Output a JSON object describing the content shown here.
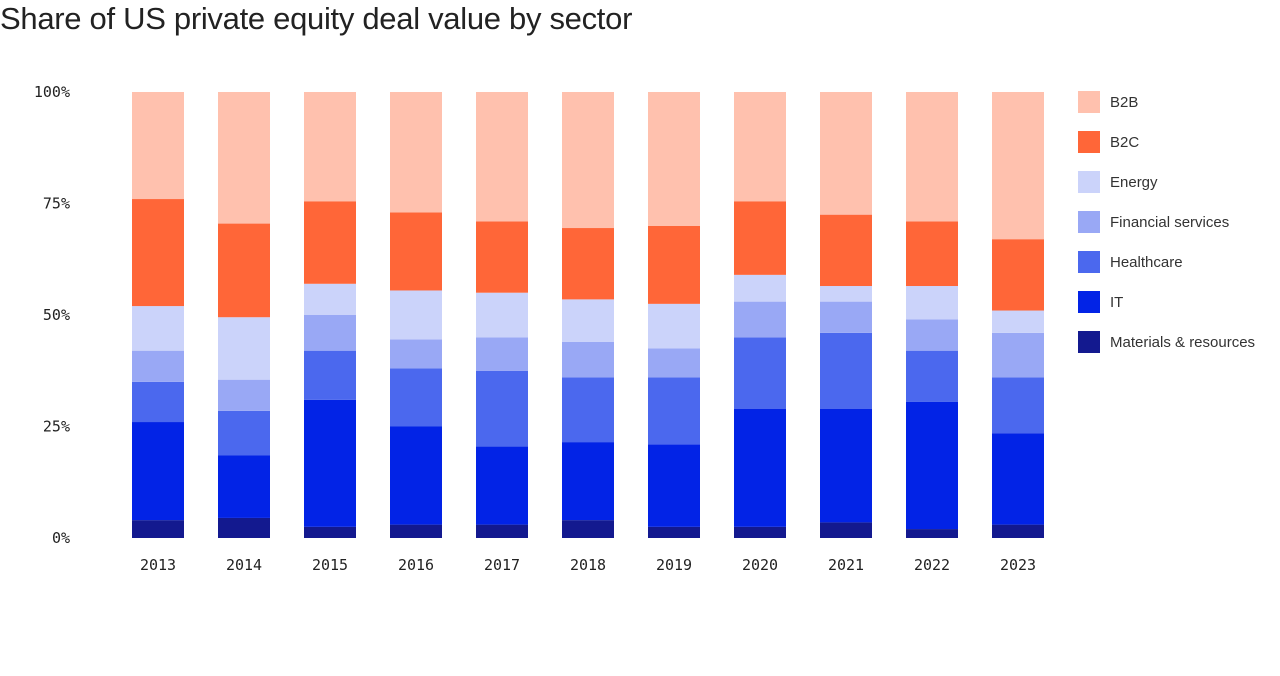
{
  "chart_data": {
    "type": "bar",
    "stacked": true,
    "title": "Share of US private equity deal value by sector",
    "categories": [
      "2013",
      "2014",
      "2015",
      "2016",
      "2017",
      "2018",
      "2019",
      "2020",
      "2021",
      "2022",
      "2023"
    ],
    "y_ticks": [
      "0%",
      "25%",
      "50%",
      "75%",
      "100%"
    ],
    "ylim": [
      0,
      100
    ],
    "legend_position": "right",
    "series": [
      {
        "name": "Materials & resources",
        "color": "#13198f",
        "values": [
          4,
          4.5,
          2.5,
          3,
          3,
          4,
          2.5,
          2.5,
          3.5,
          2,
          3
        ]
      },
      {
        "name": "IT",
        "color": "#0223e6",
        "values": [
          22,
          14,
          28.5,
          22,
          17.5,
          17.5,
          18.5,
          26.5,
          25.5,
          28.5,
          20.5
        ]
      },
      {
        "name": "Healthcare",
        "color": "#4b68ee",
        "values": [
          9,
          10,
          11,
          13,
          17,
          14.5,
          15,
          16,
          17,
          11.5,
          12.5
        ]
      },
      {
        "name": "Financial services",
        "color": "#99a8f5",
        "values": [
          7,
          7,
          8,
          6.5,
          7.5,
          8,
          6.5,
          8,
          7,
          7,
          10
        ]
      },
      {
        "name": "Energy",
        "color": "#cbd3fa",
        "values": [
          10,
          14,
          7,
          11,
          10,
          9.5,
          10,
          6,
          3.5,
          7.5,
          5
        ]
      },
      {
        "name": "B2C",
        "color": "#ff6638",
        "values": [
          24,
          21,
          18.5,
          17.5,
          16,
          16,
          17.5,
          16.5,
          16,
          14.5,
          16
        ]
      },
      {
        "name": "B2B",
        "color": "#ffc1ae",
        "values": [
          24,
          29.5,
          24.5,
          27,
          29,
          30.5,
          30,
          24.5,
          27.5,
          29,
          33
        ]
      }
    ]
  }
}
